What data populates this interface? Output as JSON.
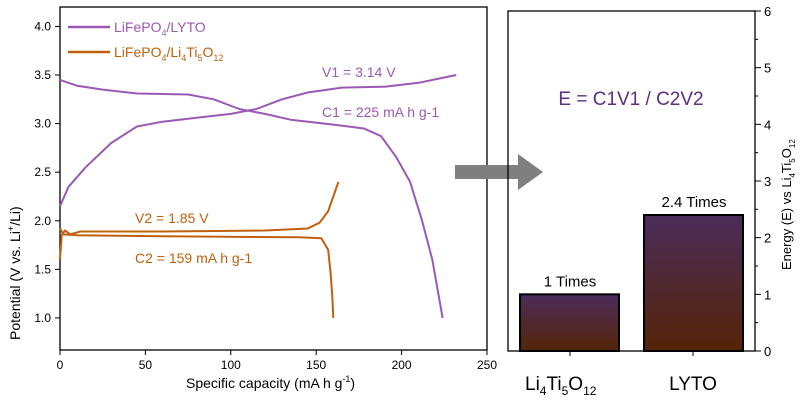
{
  "chart_data": [
    {
      "type": "line",
      "xlabel": "Specific capacity (mA h g-1)",
      "ylabel": "Potential (V vs. Li+/Li)",
      "xlim": [
        0,
        250
      ],
      "ylim": [
        0.67,
        4.2
      ],
      "xticks": [
        0,
        50,
        100,
        150,
        200,
        250
      ],
      "yticks": [
        1.0,
        1.5,
        2.0,
        2.5,
        3.0,
        3.5,
        4.0
      ],
      "legend": "top-left",
      "series": [
        {
          "name": "LiFePO4/LYTO",
          "color": "#9b59b6",
          "charge": [
            [
              0,
              2.15
            ],
            [
              5,
              2.35
            ],
            [
              15,
              2.55
            ],
            [
              30,
              2.8
            ],
            [
              45,
              2.97
            ],
            [
              60,
              3.02
            ],
            [
              80,
              3.06
            ],
            [
              100,
              3.1
            ],
            [
              115,
              3.15
            ],
            [
              130,
              3.25
            ],
            [
              145,
              3.32
            ],
            [
              165,
              3.37
            ],
            [
              190,
              3.38
            ],
            [
              210,
              3.42
            ],
            [
              232,
              3.5
            ]
          ],
          "discharge": [
            [
              0,
              3.45
            ],
            [
              10,
              3.39
            ],
            [
              25,
              3.35
            ],
            [
              45,
              3.31
            ],
            [
              75,
              3.3
            ],
            [
              90,
              3.25
            ],
            [
              105,
              3.15
            ],
            [
              120,
              3.1
            ],
            [
              135,
              3.04
            ],
            [
              160,
              2.99
            ],
            [
              178,
              2.95
            ],
            [
              188,
              2.87
            ],
            [
              197,
              2.65
            ],
            [
              205,
              2.4
            ],
            [
              212,
              2.0
            ],
            [
              218,
              1.6
            ],
            [
              224,
              1.0
            ]
          ]
        },
        {
          "name": "LiFePO4/Li4Ti5O12",
          "color": "#c0600f",
          "charge": [
            [
              0,
              1.6
            ],
            [
              1,
              1.85
            ],
            [
              3,
              1.9
            ],
            [
              6,
              1.86
            ],
            [
              12,
              1.89
            ],
            [
              60,
              1.89
            ],
            [
              120,
              1.9
            ],
            [
              145,
              1.92
            ],
            [
              152,
              1.98
            ],
            [
              157,
              2.1
            ],
            [
              160,
              2.25
            ],
            [
              163,
              2.4
            ]
          ],
          "discharge": [
            [
              0,
              1.92
            ],
            [
              2,
              1.86
            ],
            [
              10,
              1.85
            ],
            [
              60,
              1.84
            ],
            [
              140,
              1.83
            ],
            [
              153,
              1.82
            ],
            [
              157,
              1.7
            ],
            [
              158.5,
              1.45
            ],
            [
              159.5,
              1.2
            ],
            [
              160,
              1.0
            ]
          ]
        }
      ],
      "annotations": {
        "v1": "V1 = 3.14 V",
        "c1": "C1 = 225 mA h g-1",
        "v2": "V2 = 1.85 V",
        "c2": "C2 = 159 mA h g-1"
      }
    },
    {
      "type": "bar",
      "categories": [
        "Li4Ti5O12",
        "LYTO"
      ],
      "values": [
        1,
        2.4
      ],
      "data_labels": [
        "1 Times",
        "2.4 Times"
      ],
      "ylabel": "Energy (E) vs Li4Ti5O12",
      "ylim": [
        0,
        6
      ],
      "yticks": [
        0,
        1,
        2,
        3,
        4,
        5,
        6
      ],
      "formula": "E = C1V1 / C2V2"
    }
  ]
}
